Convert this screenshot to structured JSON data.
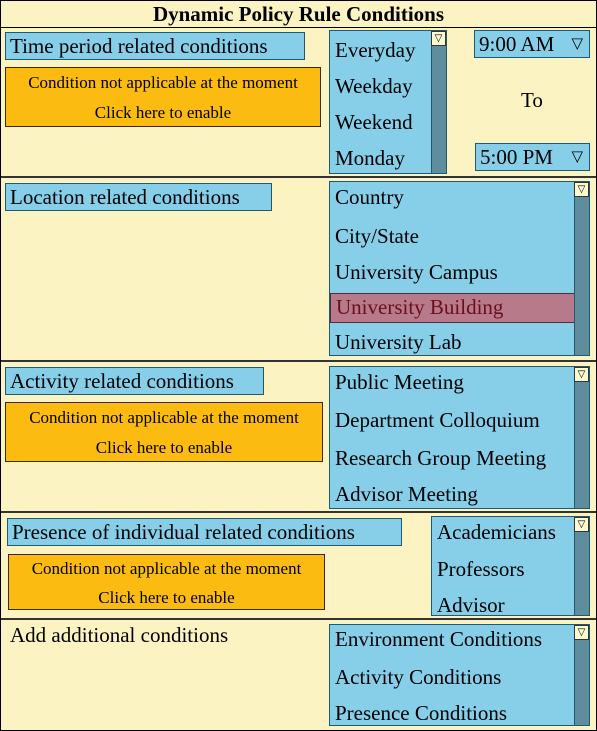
{
  "title": "Dynamic Policy Rule Conditions",
  "notice": {
    "line1": "Condition not applicable at the moment",
    "line2": "Click here to enable"
  },
  "time_section": {
    "label": "Time period related conditions",
    "days": [
      "Everyday",
      "Weekday",
      "Weekend",
      "Monday"
    ],
    "start_time": "9:00 AM",
    "to_label": "To",
    "end_time": "5:00 PM"
  },
  "location_section": {
    "label": "Location related conditions",
    "options": [
      "Country",
      "City/State",
      "University Campus",
      "University Building",
      "University Lab"
    ],
    "selected": "University Building"
  },
  "activity_section": {
    "label": "Activity related conditions",
    "options": [
      "Public Meeting",
      "Department Colloquium",
      "Research Group Meeting",
      "Advisor Meeting"
    ]
  },
  "presence_section": {
    "label": "Presence of individual related conditions",
    "options": [
      "Academicians",
      "Professors",
      "Advisor"
    ]
  },
  "additional_section": {
    "label": "Add additional conditions",
    "options": [
      "Environment Conditions",
      "Activity Conditions",
      "Presence Conditions"
    ]
  },
  "icons": {
    "dropdown_arrow": "▽"
  }
}
